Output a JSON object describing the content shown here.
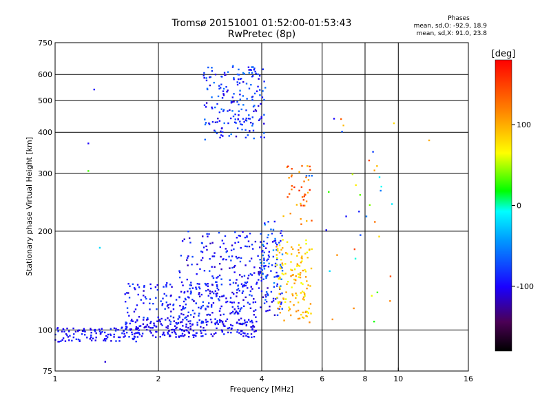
{
  "title": {
    "line1": "Tromsø 20151001 01:52:00-01:53:43",
    "line2": "RwPretec (8p)"
  },
  "phase_info": {
    "header": "Phases",
    "line_o": "mean, sd,O: -92.9, 18.9",
    "line_x": "mean, sd,X:  91.0, 23.8"
  },
  "colorbar": {
    "unit": "[deg]",
    "ticks": [
      "100",
      "0",
      "-100"
    ],
    "range": [
      -180,
      180
    ]
  },
  "chart_data": {
    "type": "scatter",
    "xlabel": "Frequency [MHz]",
    "ylabel": "Stationary phase Virtual Height [km]",
    "xscale": "log",
    "yscale": "log",
    "xlim": [
      1,
      16
    ],
    "ylim": [
      75,
      750
    ],
    "xticks": [
      "1",
      "2",
      "4",
      "6",
      "8",
      "10",
      "16"
    ],
    "xtick_values": [
      1,
      2,
      4,
      6,
      8,
      10,
      16
    ],
    "yticks": [
      "75",
      "100",
      "200",
      "300",
      "400",
      "500",
      "600",
      "750"
    ],
    "ytick_values": [
      75,
      100,
      200,
      300,
      400,
      500,
      600,
      750
    ],
    "grid": true,
    "color_by": "phase",
    "clusters": [
      {
        "f": [
          1.0,
          1.8
        ],
        "h": [
          92,
          102
        ],
        "n": 110,
        "phase": [
          -110,
          -80
        ]
      },
      {
        "f": [
          1.6,
          3.9
        ],
        "h": [
          95,
          108
        ],
        "n": 220,
        "phase": [
          -115,
          -85
        ]
      },
      {
        "f": [
          1.6,
          3.9
        ],
        "h": [
          104,
          140
        ],
        "n": 200,
        "phase": [
          -115,
          -70
        ]
      },
      {
        "f": [
          2.3,
          4.6
        ],
        "h": [
          110,
          200
        ],
        "n": 260,
        "phase": [
          -120,
          -70
        ]
      },
      {
        "f": [
          3.9,
          4.6
        ],
        "h": [
          120,
          215
        ],
        "n": 60,
        "phase": [
          -100,
          -40
        ]
      },
      {
        "f": [
          4.4,
          5.6
        ],
        "h": [
          105,
          190
        ],
        "n": 140,
        "phase": [
          60,
          115
        ]
      },
      {
        "f": [
          2.7,
          4.1
        ],
        "h": [
          380,
          640
        ],
        "n": 190,
        "phase": [
          -115,
          -55
        ]
      },
      {
        "f": [
          4.6,
          5.6
        ],
        "h": [
          210,
          330
        ],
        "n": 40,
        "phase": [
          90,
          160
        ]
      },
      {
        "f": [
          6.1,
          9.8
        ],
        "h": [
          105,
          440
        ],
        "n": 35,
        "phase": [
          -110,
          150
        ]
      }
    ],
    "points": [
      {
        "f": 1.3,
        "h": 540,
        "phase": -100
      },
      {
        "f": 1.25,
        "h": 370,
        "phase": -100
      },
      {
        "f": 1.25,
        "h": 305,
        "phase": 30
      },
      {
        "f": 1.35,
        "h": 178,
        "phase": -20
      },
      {
        "f": 1.4,
        "h": 80,
        "phase": -110
      },
      {
        "f": 5.4,
        "h": 295,
        "phase": -60
      },
      {
        "f": 5.5,
        "h": 295,
        "phase": -60
      },
      {
        "f": 5.6,
        "h": 295,
        "phase": -60
      },
      {
        "f": 12.3,
        "h": 378,
        "phase": 100
      },
      {
        "f": 6.5,
        "h": 440,
        "phase": -100
      }
    ]
  }
}
